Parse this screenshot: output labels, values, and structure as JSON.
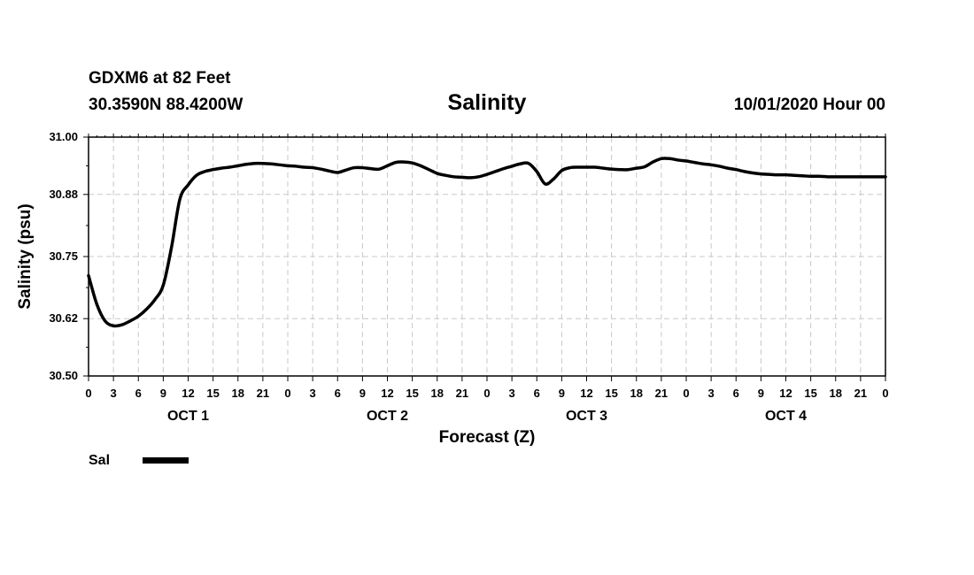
{
  "header": {
    "station": "GDXM6 at 82 Feet",
    "location": "30.3590N 88.4200W",
    "title": "Salinity",
    "datetime": "10/01/2020 Hour 00"
  },
  "chart_data": {
    "type": "line",
    "title": "Salinity",
    "xlabel": "Forecast (Z)",
    "ylabel": "Salinity (psu)",
    "xlim": [
      0,
      96
    ],
    "ylim": [
      30.5,
      31.0
    ],
    "yticks": [
      30.5,
      30.62,
      30.75,
      30.88,
      31.0
    ],
    "ytick_labels": [
      "30.50",
      "30.62",
      "30.75",
      "30.88",
      "31.00"
    ],
    "x_tick_hours": [
      0,
      3,
      6,
      9,
      12,
      15,
      18,
      21,
      24,
      27,
      30,
      33,
      36,
      39,
      42,
      45,
      48,
      51,
      54,
      57,
      60,
      63,
      66,
      69,
      72,
      75,
      78,
      81,
      84,
      87,
      90,
      93,
      96
    ],
    "x_tick_labels": [
      "0",
      "3",
      "6",
      "9",
      "12",
      "15",
      "18",
      "21",
      "0",
      "3",
      "6",
      "9",
      "12",
      "15",
      "18",
      "21",
      "0",
      "3",
      "6",
      "9",
      "12",
      "15",
      "18",
      "21",
      "0",
      "3",
      "6",
      "9",
      "12",
      "15",
      "18",
      "21",
      "0"
    ],
    "day_labels": [
      {
        "label": "OCT 1",
        "hour": 12
      },
      {
        "label": "OCT 2",
        "hour": 36
      },
      {
        "label": "OCT 3",
        "hour": 60
      },
      {
        "label": "OCT 4",
        "hour": 84
      }
    ],
    "grid": true,
    "legend": {
      "placement": "bottom-left"
    },
    "series": [
      {
        "name": "Sal",
        "color": "#000000",
        "x": [
          0,
          1,
          2,
          3,
          4,
          5,
          6,
          7,
          8,
          9,
          10,
          11,
          12,
          13,
          14,
          15,
          16,
          17,
          18,
          19,
          20,
          21,
          22,
          23,
          24,
          25,
          26,
          27,
          28,
          29,
          30,
          31,
          32,
          33,
          34,
          35,
          36,
          37,
          38,
          39,
          40,
          41,
          42,
          43,
          44,
          45,
          46,
          47,
          48,
          49,
          50,
          51,
          52,
          53,
          54,
          55,
          56,
          57,
          58,
          59,
          60,
          61,
          62,
          63,
          64,
          65,
          66,
          67,
          68,
          69,
          70,
          71,
          72,
          73,
          74,
          75,
          76,
          77,
          78,
          79,
          80,
          81,
          82,
          83,
          84,
          85,
          86,
          87,
          88,
          89,
          90,
          91,
          92,
          93,
          94,
          95,
          96
        ],
        "values": [
          30.71,
          30.65,
          30.615,
          30.605,
          30.607,
          30.615,
          30.625,
          30.64,
          30.66,
          30.69,
          30.77,
          30.87,
          30.9,
          30.92,
          30.928,
          30.932,
          30.935,
          30.937,
          30.94,
          30.943,
          30.945,
          30.945,
          30.944,
          30.942,
          30.94,
          30.939,
          30.937,
          30.936,
          30.933,
          30.929,
          30.926,
          30.931,
          30.936,
          30.936,
          30.934,
          30.933,
          30.94,
          30.947,
          30.948,
          30.946,
          30.94,
          30.932,
          30.924,
          30.92,
          30.917,
          30.916,
          30.915,
          30.917,
          30.922,
          30.928,
          30.934,
          30.939,
          30.944,
          30.945,
          30.928,
          30.902,
          30.912,
          30.93,
          30.936,
          30.937,
          30.937,
          30.937,
          30.935,
          30.933,
          30.932,
          30.932,
          30.935,
          30.938,
          30.948,
          30.955,
          30.955,
          30.952,
          30.95,
          30.947,
          30.944,
          30.942,
          30.939,
          30.935,
          30.932,
          30.928,
          30.925,
          30.923,
          30.922,
          30.921,
          30.921,
          30.92,
          30.919,
          30.918,
          30.918,
          30.917,
          30.917,
          30.917,
          30.917,
          30.917,
          30.917,
          30.917,
          30.917
        ]
      }
    ]
  }
}
